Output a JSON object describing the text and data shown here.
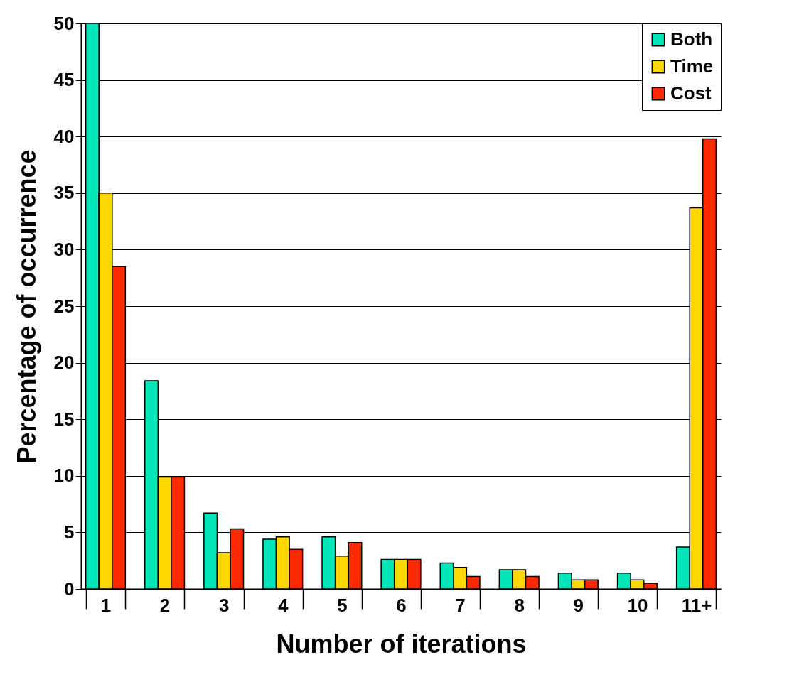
{
  "chart_data": {
    "type": "bar",
    "xlabel": "Number of iterations",
    "ylabel": "Percentage of occurrence",
    "categories": [
      "1",
      "2",
      "3",
      "4",
      "5",
      "6",
      "7",
      "8",
      "9",
      "10",
      "11+"
    ],
    "series": [
      {
        "name": "Both",
        "color": "#00e6b8",
        "values": [
          50,
          18.4,
          6.7,
          4.4,
          4.6,
          2.6,
          2.3,
          1.7,
          1.4,
          1.4,
          3.7
        ]
      },
      {
        "name": "Time",
        "color": "#ffd700",
        "values": [
          35,
          9.9,
          3.2,
          4.6,
          2.9,
          2.6,
          1.9,
          1.7,
          0.8,
          0.8,
          33.7
        ]
      },
      {
        "name": "Cost",
        "color": "#ff2a00",
        "values": [
          28.5,
          9.9,
          5.3,
          3.5,
          4.1,
          2.6,
          1.1,
          1.1,
          0.8,
          0.5,
          39.8
        ]
      }
    ],
    "ylim": [
      0,
      50
    ],
    "yticks": [
      0,
      5,
      10,
      15,
      20,
      25,
      30,
      35,
      40,
      45,
      50
    ],
    "grid": "y",
    "legend": "top right"
  }
}
